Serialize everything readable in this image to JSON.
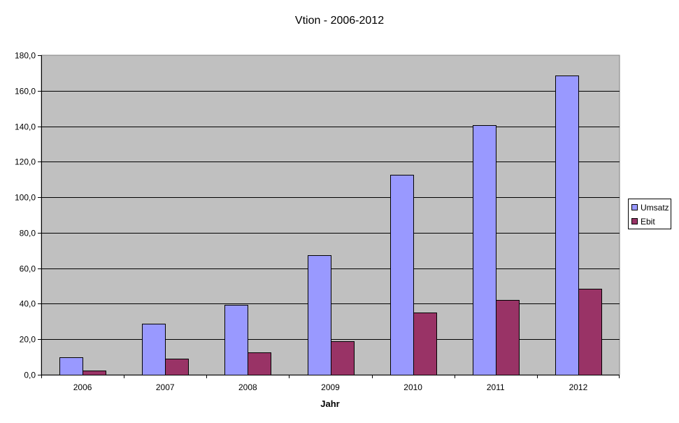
{
  "chart_data": {
    "type": "bar",
    "title": "Vtion - 2006-2012",
    "xlabel": "Jahr",
    "ylabel": "",
    "categories": [
      "2006",
      "2007",
      "2008",
      "2009",
      "2010",
      "2011",
      "2012"
    ],
    "series": [
      {
        "name": "Umsatz",
        "color": "#9999ff",
        "values": [
          9.8,
          28.8,
          39.2,
          67.5,
          112.5,
          140.6,
          168.7
        ]
      },
      {
        "name": "Ebit",
        "color": "#993366",
        "values": [
          2.3,
          9.0,
          12.6,
          19.0,
          35.0,
          42.0,
          48.3
        ]
      }
    ],
    "ylim": [
      0,
      180
    ],
    "yticks": [
      "0,0",
      "20,0",
      "40,0",
      "60,0",
      "80,0",
      "100,0",
      "120,0",
      "140,0",
      "160,0",
      "180,0"
    ],
    "grid": true,
    "legend_position": "right",
    "plot_background": "#c0c0c0"
  }
}
